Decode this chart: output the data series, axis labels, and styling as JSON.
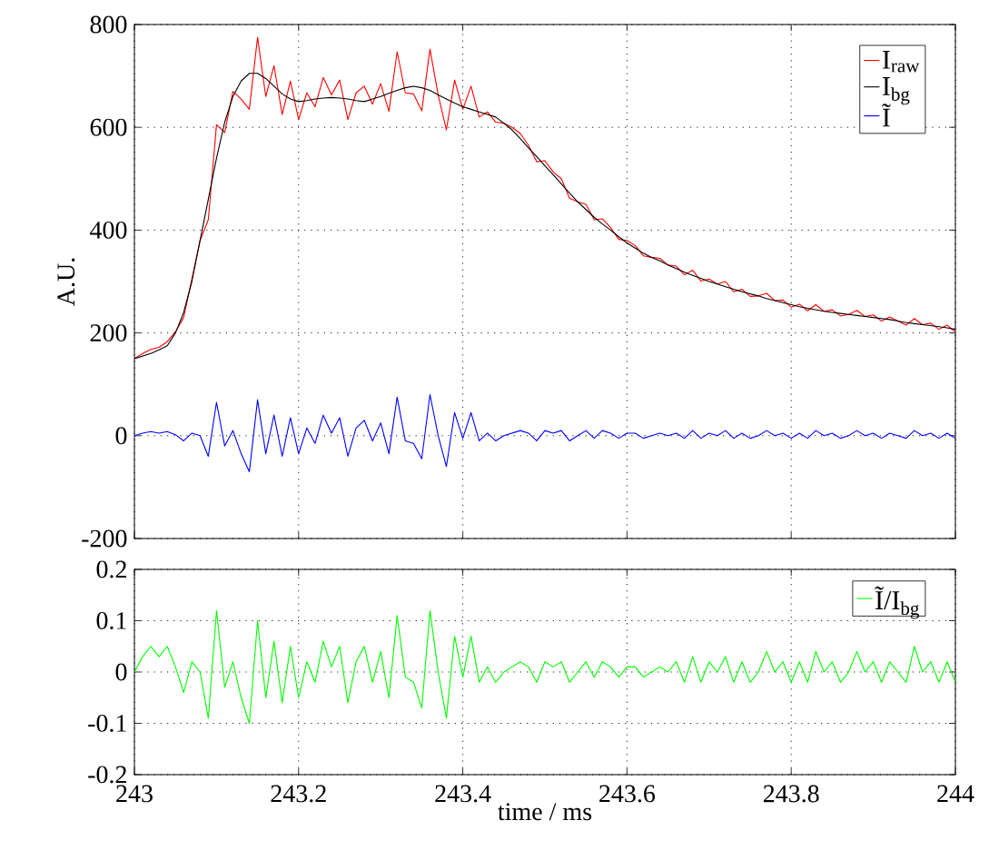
{
  "chart_data": [
    {
      "type": "line",
      "ylabel": "A.U.",
      "xlim": [
        243,
        244
      ],
      "ylim": [
        -200,
        800
      ],
      "xticks": [
        243,
        243.2,
        243.4,
        243.6,
        243.8,
        244
      ],
      "yticks": [
        -200,
        0,
        200,
        400,
        600,
        800
      ],
      "grid": true,
      "legend": "top right",
      "tick_labels": "y",
      "line_style": "solid",
      "x": [
        243.0,
        243.01,
        243.02,
        243.03,
        243.04,
        243.05,
        243.06,
        243.07,
        243.08,
        243.09,
        243.1,
        243.11,
        243.12,
        243.13,
        243.14,
        243.15,
        243.16,
        243.17,
        243.18,
        243.19,
        243.2,
        243.21,
        243.22,
        243.23,
        243.24,
        243.25,
        243.26,
        243.27,
        243.28,
        243.29,
        243.3,
        243.31,
        243.32,
        243.33,
        243.34,
        243.35,
        243.36,
        243.37,
        243.38,
        243.39,
        243.4,
        243.41,
        243.42,
        243.43,
        243.44,
        243.45,
        243.46,
        243.47,
        243.48,
        243.49,
        243.5,
        243.51,
        243.52,
        243.53,
        243.54,
        243.55,
        243.56,
        243.57,
        243.58,
        243.59,
        243.6,
        243.61,
        243.62,
        243.63,
        243.64,
        243.65,
        243.66,
        243.67,
        243.68,
        243.69,
        243.7,
        243.71,
        243.72,
        243.73,
        243.74,
        243.75,
        243.76,
        243.77,
        243.78,
        243.79,
        243.8,
        243.81,
        243.82,
        243.83,
        243.84,
        243.85,
        243.86,
        243.87,
        243.88,
        243.89,
        243.9,
        243.91,
        243.92,
        243.93,
        243.94,
        243.95,
        243.96,
        243.97,
        243.98,
        243.99,
        244.0
      ],
      "series": [
        {
          "name": "I$_{raw}$",
          "color": "#ff0000",
          "values": [
            150,
            160,
            168,
            172,
            183,
            202,
            230,
            305,
            380,
            420,
            605,
            590,
            670,
            655,
            635,
            775,
            660,
            720,
            625,
            690,
            615,
            667,
            640,
            697,
            663,
            692,
            615,
            667,
            680,
            645,
            685,
            631,
            747,
            667,
            665,
            632,
            752,
            663,
            595,
            692,
            635,
            680,
            620,
            630,
            610,
            608,
            600,
            588,
            565,
            533,
            535,
            513,
            500,
            462,
            455,
            450,
            420,
            422,
            405,
            382,
            380,
            370,
            350,
            347,
            345,
            332,
            330,
            313,
            322,
            301,
            305,
            295,
            300,
            280,
            285,
            271,
            272,
            277,
            263,
            264,
            250,
            256,
            243,
            255,
            242,
            245,
            233,
            236,
            244,
            232,
            235,
            223,
            231,
            223,
            215,
            228,
            216,
            219,
            207,
            215,
            202
          ]
        },
        {
          "name": "I$_{bg}$",
          "color": "#000000",
          "values": [
            150,
            155,
            160,
            167,
            175,
            200,
            240,
            300,
            380,
            460,
            540,
            610,
            660,
            690,
            705,
            705,
            695,
            680,
            665,
            655,
            650,
            652,
            655,
            657,
            658,
            657,
            655,
            652,
            650,
            655,
            660,
            666,
            672,
            677,
            680,
            677,
            672,
            663,
            655,
            647,
            640,
            635,
            630,
            625,
            620,
            608,
            595,
            578,
            560,
            543,
            525,
            508,
            490,
            472,
            455,
            440,
            425,
            412,
            400,
            387,
            375,
            365,
            355,
            347,
            340,
            332,
            325,
            318,
            312,
            306,
            300,
            295,
            290,
            285,
            280,
            276,
            272,
            267,
            263,
            259,
            255,
            251,
            248,
            245,
            242,
            240,
            238,
            236,
            234,
            232,
            230,
            228,
            226,
            223,
            220,
            218,
            216,
            214,
            212,
            210,
            207
          ]
        },
        {
          "name": "Ĩ",
          "color": "#0000ff",
          "values": [
            0,
            5,
            8,
            5,
            8,
            2,
            -10,
            5,
            0,
            -40,
            65,
            -20,
            10,
            -35,
            -70,
            70,
            -35,
            40,
            -40,
            35,
            -35,
            15,
            -15,
            40,
            5,
            35,
            -40,
            15,
            30,
            -10,
            25,
            -35,
            75,
            -10,
            -15,
            -45,
            80,
            0,
            -60,
            45,
            -5,
            45,
            -10,
            5,
            -10,
            0,
            5,
            10,
            5,
            -10,
            10,
            5,
            10,
            -10,
            0,
            10,
            -5,
            10,
            5,
            -5,
            5,
            5,
            -5,
            0,
            5,
            0,
            5,
            -5,
            10,
            -5,
            5,
            0,
            10,
            -5,
            5,
            -5,
            0,
            10,
            0,
            5,
            -5,
            5,
            -5,
            10,
            0,
            5,
            -5,
            0,
            10,
            0,
            5,
            -5,
            5,
            0,
            -5,
            10,
            0,
            5,
            -5,
            5,
            -5
          ]
        }
      ]
    },
    {
      "type": "line",
      "xlabel": "time / ms",
      "xlim": [
        243,
        244
      ],
      "ylim": [
        -0.2,
        0.2
      ],
      "xticks": [
        243,
        243.2,
        243.4,
        243.6,
        243.8,
        244
      ],
      "yticks": [
        -0.2,
        -0.1,
        0,
        0.1,
        0.2
      ],
      "grid": true,
      "legend": "top right",
      "line_style": "solid",
      "x": [
        243.0,
        243.01,
        243.02,
        243.03,
        243.04,
        243.05,
        243.06,
        243.07,
        243.08,
        243.09,
        243.1,
        243.11,
        243.12,
        243.13,
        243.14,
        243.15,
        243.16,
        243.17,
        243.18,
        243.19,
        243.2,
        243.21,
        243.22,
        243.23,
        243.24,
        243.25,
        243.26,
        243.27,
        243.28,
        243.29,
        243.3,
        243.31,
        243.32,
        243.33,
        243.34,
        243.35,
        243.36,
        243.37,
        243.38,
        243.39,
        243.4,
        243.41,
        243.42,
        243.43,
        243.44,
        243.45,
        243.46,
        243.47,
        243.48,
        243.49,
        243.5,
        243.51,
        243.52,
        243.53,
        243.54,
        243.55,
        243.56,
        243.57,
        243.58,
        243.59,
        243.6,
        243.61,
        243.62,
        243.63,
        243.64,
        243.65,
        243.66,
        243.67,
        243.68,
        243.69,
        243.7,
        243.71,
        243.72,
        243.73,
        243.74,
        243.75,
        243.76,
        243.77,
        243.78,
        243.79,
        243.8,
        243.81,
        243.82,
        243.83,
        243.84,
        243.85,
        243.86,
        243.87,
        243.88,
        243.89,
        243.9,
        243.91,
        243.92,
        243.93,
        243.94,
        243.95,
        243.96,
        243.97,
        243.98,
        243.99,
        244.0
      ],
      "series": [
        {
          "name": "Ĩ/I$_{bg}$",
          "color": "#00ff00",
          "values": [
            0,
            0.03,
            0.05,
            0.03,
            0.05,
            0.01,
            -0.04,
            0.02,
            0,
            -0.09,
            0.12,
            -0.03,
            0.02,
            -0.05,
            -0.1,
            0.1,
            -0.05,
            0.06,
            -0.06,
            0.05,
            -0.05,
            0.02,
            -0.02,
            0.06,
            0.01,
            0.05,
            -0.06,
            0.02,
            0.05,
            -0.02,
            0.04,
            -0.05,
            0.11,
            -0.01,
            -0.02,
            -0.07,
            0.12,
            0,
            -0.09,
            0.07,
            -0.01,
            0.07,
            -0.02,
            0.01,
            -0.02,
            0,
            0.01,
            0.02,
            0.01,
            -0.02,
            0.02,
            0.01,
            0.02,
            -0.02,
            0,
            0.02,
            -0.01,
            0.02,
            0.01,
            -0.01,
            0.01,
            0.01,
            -0.01,
            0,
            0.01,
            0,
            0.02,
            -0.02,
            0.03,
            -0.02,
            0.02,
            0,
            0.03,
            -0.02,
            0.02,
            -0.02,
            0,
            0.04,
            0,
            0.02,
            -0.02,
            0.02,
            -0.02,
            0.04,
            0,
            0.02,
            -0.02,
            0,
            0.04,
            0,
            0.02,
            -0.02,
            0.02,
            0,
            -0.02,
            0.05,
            0,
            0.02,
            -0.02,
            0.02,
            -0.02
          ]
        }
      ]
    }
  ]
}
